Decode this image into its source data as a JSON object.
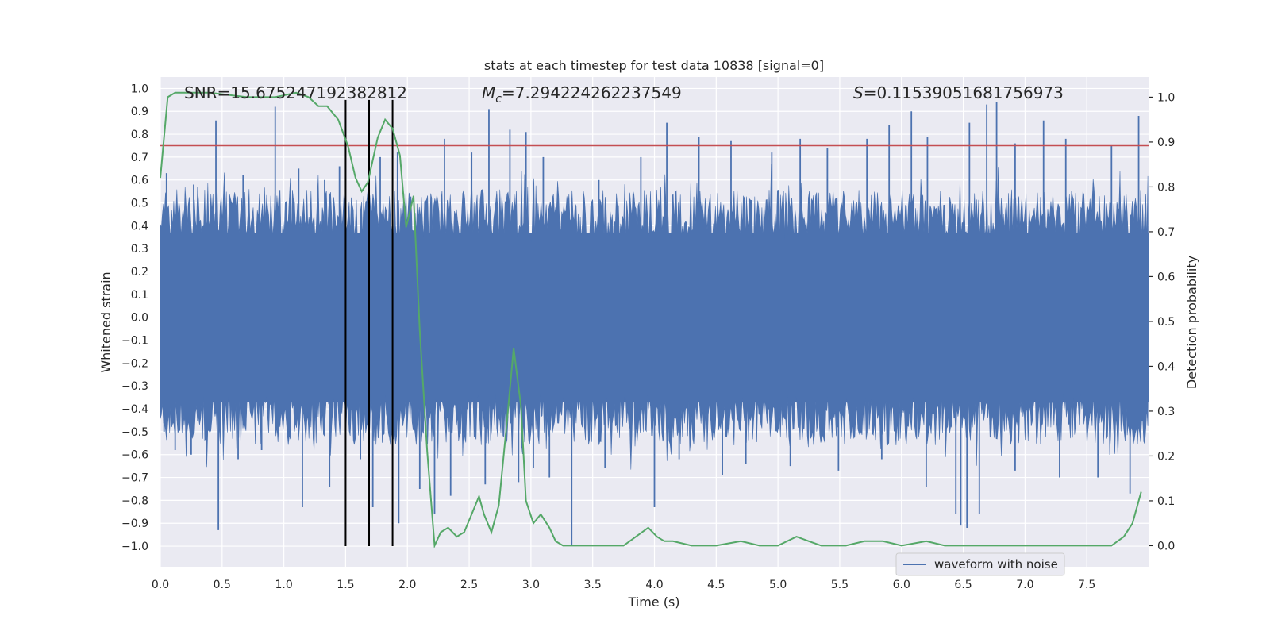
{
  "chart_data": {
    "type": "line",
    "title": "stats at each timestep for test data 10838 [signal=0]",
    "xlabel": "Time (s)",
    "ylabel_left": "Whitened strain",
    "ylabel_right": "Detection probability",
    "xlim": [
      0.0,
      8.0
    ],
    "ylim_left": [
      -1.09,
      1.05
    ],
    "ylim_right": [
      -0.047,
      1.045
    ],
    "grid": true,
    "legend": {
      "placement": "bottom-right",
      "entries": [
        "waveform with noise"
      ]
    },
    "x_ticks": [
      0.0,
      0.5,
      1.0,
      1.5,
      2.0,
      2.5,
      3.0,
      3.5,
      4.0,
      4.5,
      5.0,
      5.5,
      6.0,
      6.5,
      7.0,
      7.5
    ],
    "x_tick_labels": [
      "0.0",
      "0.5",
      "1.0",
      "1.5",
      "2.0",
      "2.5",
      "3.0",
      "3.5",
      "4.0",
      "4.5",
      "5.0",
      "5.5",
      "6.0",
      "6.5",
      "7.0",
      "7.5"
    ],
    "y_ticks_left": [
      1.0,
      0.9,
      0.8,
      0.7,
      0.6,
      0.5,
      0.4,
      0.3,
      0.2,
      0.1,
      0.0,
      -0.1,
      -0.2,
      -0.3,
      -0.4,
      -0.5,
      -0.6,
      -0.7,
      -0.8,
      -0.9,
      -1.0
    ],
    "y_tick_labels_left": [
      "1.0",
      "0.9",
      "0.8",
      "0.7",
      "0.6",
      "0.5",
      "0.4",
      "0.3",
      "0.2",
      "0.1",
      "0.0",
      "-0.1",
      "-0.2",
      "-0.3",
      "-0.4",
      "-0.5",
      "-0.6",
      "-0.7",
      "-0.8",
      "-0.9",
      "-1.0"
    ],
    "y_ticks_right": [
      1.0,
      0.9,
      0.8,
      0.7,
      0.6,
      0.5,
      0.4,
      0.3,
      0.2,
      0.1,
      0.0
    ],
    "y_tick_labels_right": [
      "1.0",
      "0.9",
      "0.8",
      "0.7",
      "0.6",
      "0.5",
      "0.4",
      "0.3",
      "0.2",
      "0.1",
      "0.0"
    ],
    "annotations": {
      "snr": "SNR=15.675247192382812",
      "mc_symbol": "M",
      "mc_subscript": "c",
      "mc_value": "=7.294224262237549",
      "s_symbol": "S",
      "s_value": "=0.11539051681756973"
    },
    "threshold": {
      "value": 0.75,
      "color": "#c44e52"
    },
    "vertical_markers": {
      "x": [
        1.5,
        1.69,
        1.88
      ],
      "y_from": -1.0,
      "y_to": 0.95
    },
    "waveform": {
      "name": "waveform with noise",
      "color": "#4c72b0",
      "core_envelope": [
        -0.37,
        0.37
      ],
      "spikes_up": [
        [
          0.05,
          0.63
        ],
        [
          0.27,
          0.58
        ],
        [
          0.45,
          0.86
        ],
        [
          0.67,
          0.62
        ],
        [
          0.93,
          0.92
        ],
        [
          1.12,
          0.65
        ],
        [
          1.33,
          0.6
        ],
        [
          1.45,
          0.66
        ],
        [
          1.78,
          0.7
        ],
        [
          1.92,
          0.72
        ],
        [
          2.3,
          0.78
        ],
        [
          2.52,
          0.72
        ],
        [
          2.66,
          0.91
        ],
        [
          2.83,
          0.82
        ],
        [
          2.96,
          0.81
        ],
        [
          3.1,
          0.7
        ],
        [
          3.55,
          0.6
        ],
        [
          3.89,
          0.7
        ],
        [
          4.1,
          0.85
        ],
        [
          4.36,
          0.79
        ],
        [
          4.62,
          0.77
        ],
        [
          4.95,
          0.72
        ],
        [
          5.18,
          0.78
        ],
        [
          5.4,
          0.74
        ],
        [
          5.72,
          0.78
        ],
        [
          5.9,
          0.84
        ],
        [
          6.08,
          0.9
        ],
        [
          6.21,
          0.79
        ],
        [
          6.55,
          0.85
        ],
        [
          6.69,
          0.93
        ],
        [
          6.77,
          0.94
        ],
        [
          6.92,
          0.76
        ],
        [
          7.15,
          0.86
        ],
        [
          7.33,
          0.78
        ],
        [
          7.7,
          0.75
        ],
        [
          7.92,
          0.88
        ]
      ],
      "spikes_down": [
        [
          0.03,
          -0.5
        ],
        [
          0.12,
          -0.58
        ],
        [
          0.25,
          -0.6
        ],
        [
          0.47,
          -0.93
        ],
        [
          0.63,
          -0.62
        ],
        [
          0.82,
          -0.58
        ],
        [
          1.15,
          -0.83
        ],
        [
          1.37,
          -0.74
        ],
        [
          1.62,
          -0.62
        ],
        [
          1.72,
          -0.83
        ],
        [
          1.93,
          -0.9
        ],
        [
          2.1,
          -0.75
        ],
        [
          2.22,
          -0.86
        ],
        [
          2.35,
          -0.78
        ],
        [
          2.63,
          -0.73
        ],
        [
          2.9,
          -0.72
        ],
        [
          3.02,
          -0.66
        ],
        [
          3.15,
          -0.7
        ],
        [
          3.33,
          -1.0
        ],
        [
          3.6,
          -0.66
        ],
        [
          4.0,
          -0.83
        ],
        [
          4.2,
          -0.62
        ],
        [
          4.55,
          -0.69
        ],
        [
          4.74,
          -0.64
        ],
        [
          5.1,
          -0.65
        ],
        [
          5.49,
          -0.67
        ],
        [
          5.84,
          -0.62
        ],
        [
          6.2,
          -0.74
        ],
        [
          6.44,
          -0.86
        ],
        [
          6.48,
          -0.91
        ],
        [
          6.53,
          -0.92
        ],
        [
          6.63,
          -0.86
        ],
        [
          6.92,
          -0.67
        ],
        [
          7.28,
          -0.7
        ],
        [
          7.59,
          -0.7
        ],
        [
          7.85,
          -0.77
        ]
      ]
    },
    "detection_probability": {
      "color": "#55a868",
      "x": [
        0.0,
        0.06,
        0.12,
        0.4,
        0.7,
        0.93,
        1.1,
        1.2,
        1.28,
        1.35,
        1.44,
        1.52,
        1.58,
        1.63,
        1.68,
        1.76,
        1.82,
        1.88,
        1.94,
        1.99,
        2.05,
        2.1,
        2.16,
        2.22,
        2.27,
        2.33,
        2.4,
        2.46,
        2.52,
        2.58,
        2.62,
        2.68,
        2.74,
        2.8,
        2.86,
        2.92,
        2.96,
        3.02,
        3.08,
        3.15,
        3.2,
        3.26,
        3.33,
        3.5,
        3.75,
        3.95,
        4.02,
        4.08,
        4.15,
        4.3,
        4.5,
        4.7,
        4.85,
        5.0,
        5.15,
        5.25,
        5.35,
        5.55,
        5.7,
        5.85,
        6.0,
        6.2,
        6.35,
        6.6,
        6.8,
        7.0,
        7.2,
        7.4,
        7.58,
        7.7,
        7.8,
        7.87,
        7.94
      ],
      "y": [
        0.82,
        1.0,
        1.01,
        1.01,
        1.0,
        1.0,
        1.01,
        1.0,
        0.98,
        0.98,
        0.95,
        0.89,
        0.82,
        0.79,
        0.81,
        0.91,
        0.95,
        0.93,
        0.87,
        0.71,
        0.78,
        0.48,
        0.21,
        0.0,
        0.03,
        0.04,
        0.02,
        0.03,
        0.07,
        0.11,
        0.07,
        0.03,
        0.09,
        0.26,
        0.44,
        0.31,
        0.1,
        0.05,
        0.07,
        0.04,
        0.01,
        0.0,
        0.0,
        0.0,
        0.0,
        0.04,
        0.02,
        0.01,
        0.01,
        0.0,
        0.0,
        0.01,
        0.0,
        0.0,
        0.02,
        0.01,
        0.0,
        0.0,
        0.01,
        0.01,
        0.0,
        0.01,
        0.0,
        0.0,
        0.0,
        0.0,
        0.0,
        0.0,
        0.0,
        0.0,
        0.02,
        0.05,
        0.12
      ]
    }
  }
}
